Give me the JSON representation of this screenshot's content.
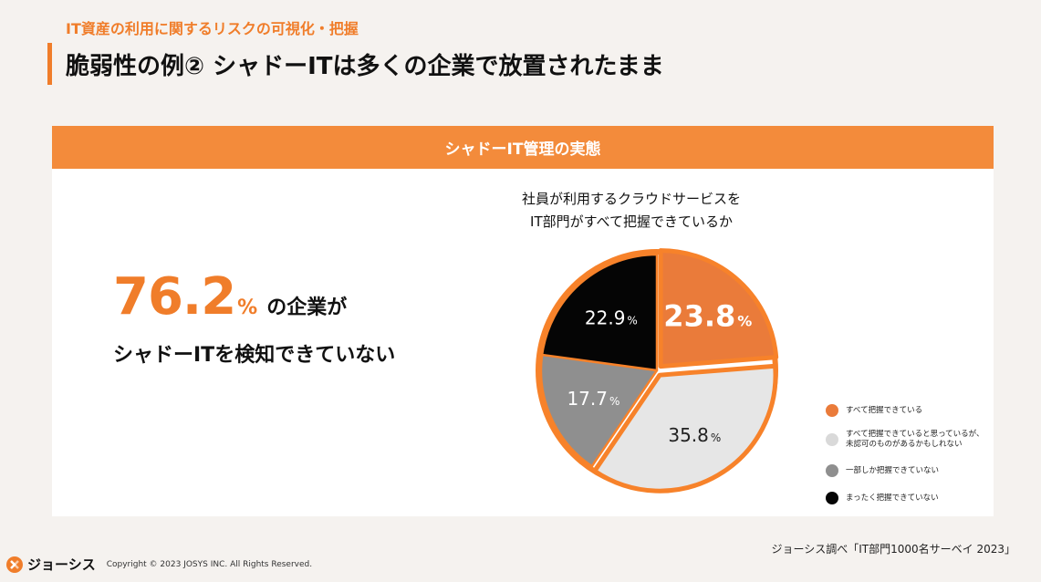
{
  "header": {
    "subtitle": "IT資産の利用に関するリスクの可視化・把握",
    "title": "脆弱性の例② シャドーITは多くの企業で放置されたまま"
  },
  "card": {
    "header": "シャドーIT管理の実態",
    "stat_value": "76.2",
    "stat_unit": "%",
    "stat_text": "の企業が",
    "stat_line2": "シャドーITを検知できていない"
  },
  "chart_data": {
    "type": "pie",
    "title_line1": "社員が利用するクラウドサービスを",
    "title_line2": "IT部門がすべて把握できているか",
    "slices": [
      {
        "label": "すべて把握できている",
        "value": 23.8,
        "display": "23.8",
        "color": "#ea7b3a",
        "text_color": "#ffffff",
        "highlight": true
      },
      {
        "label": "すべて把握できていると思っているが、\n未認可のものがあるかもしれない",
        "value": 35.8,
        "display": "35.8",
        "color": "#e6e6e6",
        "text_color": "#222222",
        "highlight": true
      },
      {
        "label": "一部しか把握できていない",
        "value": 17.7,
        "display": "17.7",
        "color": "#8f8f8f",
        "text_color": "#ffffff",
        "highlight": false
      },
      {
        "label": "まったく把握できていない",
        "value": 22.9,
        "display": "22.9",
        "color": "#050505",
        "text_color": "#ffffff",
        "highlight": false
      }
    ],
    "unit": "%",
    "accent": "#f7822a"
  },
  "footer": {
    "source": "ジョーシス調べ「IT部門1000名サーベイ 2023」",
    "logo_text": "ジョーシス",
    "copyright": "Copyright © 2023 JOSYS INC. All Rights Reserved."
  }
}
